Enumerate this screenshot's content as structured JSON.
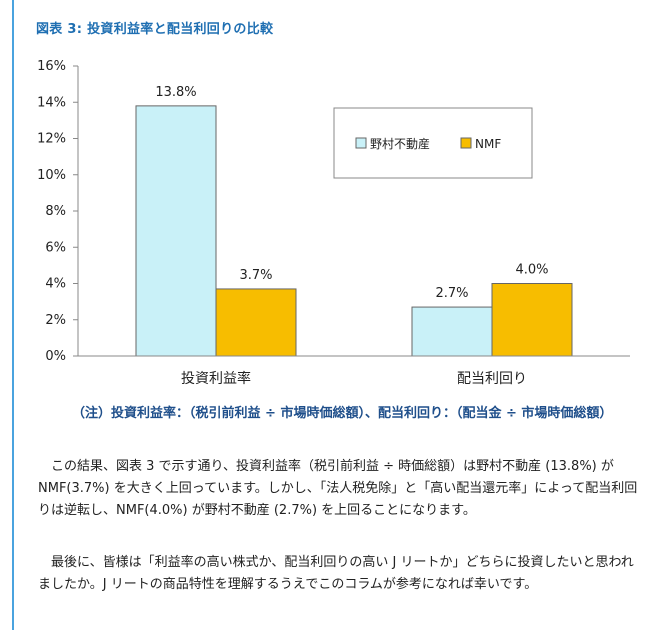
{
  "figure_title": "図表 3: 投資利益率と配当利回りの比較",
  "chart_data": {
    "type": "bar",
    "categories": [
      "投資利益率",
      "配当利回り"
    ],
    "series": [
      {
        "name": "野村不動産",
        "values": [
          13.8,
          2.7
        ],
        "labels": [
          "13.8%",
          "2.7%"
        ],
        "color": "#c9f1f8"
      },
      {
        "name": "NMF",
        "values": [
          3.7,
          4.0
        ],
        "labels": [
          "3.7%",
          "4.0%"
        ],
        "color": "#f7bd00"
      }
    ],
    "y_ticks": [
      "0%",
      "2%",
      "4%",
      "6%",
      "8%",
      "10%",
      "12%",
      "14%",
      "16%"
    ],
    "ylim": [
      0,
      16
    ],
    "legend_position": "top-right",
    "grid": false
  },
  "note": "（注）投資利益率：（税引前利益 ÷ 市場時価総額）、配当利回り：（配当金 ÷ 市場時価総額）",
  "paragraphs": [
    "この結果、図表 3 で示す通り、投資利益率（税引前利益 ÷ 時価総額）は野村不動産 (13.8%) が NMF(3.7%) を大きく上回っています。しかし、「法人税免除」と「高い配当還元率」によって配当利回りは逆転し、NMF(4.0%) が野村不動産 (2.7%) を上回ることになります。",
    "最後に、皆様は「利益率の高い株式か、配当利回りの高い J リートか」どちらに投資したいと思われましたか。J リートの商品特性を理解するうえでこのコラムが参考になれば幸いです。"
  ]
}
